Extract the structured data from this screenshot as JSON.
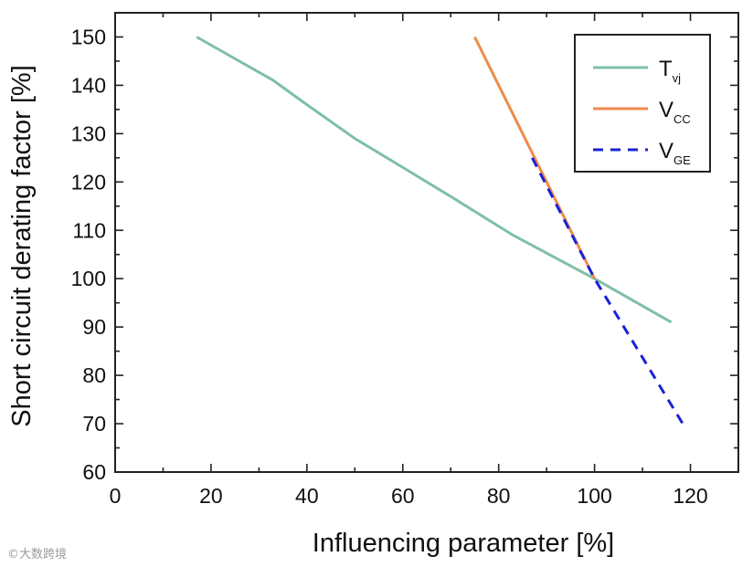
{
  "chart_data": {
    "type": "line",
    "title": "",
    "xlabel": "Influencing parameter [%]",
    "ylabel": "Short circuit derating factor [%]",
    "xlim": [
      0,
      130
    ],
    "ylim": [
      60,
      155
    ],
    "x_ticks": [
      0,
      20,
      40,
      60,
      80,
      100,
      120
    ],
    "y_ticks": [
      60,
      70,
      80,
      90,
      100,
      110,
      120,
      130,
      140,
      150
    ],
    "grid": false,
    "legend_position": "top-right",
    "series": [
      {
        "name": "Tvj",
        "legend_main": "T",
        "legend_sub": "vj",
        "color": "#7fbfa7",
        "style": "solid",
        "x": [
          17,
          25,
          33,
          40,
          50,
          60,
          70,
          83,
          100,
          116
        ],
        "y": [
          150,
          145.5,
          141,
          136,
          129,
          123,
          117,
          109,
          100,
          91
        ]
      },
      {
        "name": "VCC",
        "legend_main": "V",
        "legend_sub": "CC",
        "color": "#f08a4b",
        "style": "solid",
        "x": [
          75,
          100
        ],
        "y": [
          150,
          100
        ]
      },
      {
        "name": "VGE",
        "legend_main": "V",
        "legend_sub": "GE",
        "color": "#1a22d6",
        "style": "dashed",
        "x": [
          87,
          100,
          119
        ],
        "y": [
          125,
          100,
          69
        ]
      }
    ]
  },
  "watermark": "©大数跨境"
}
